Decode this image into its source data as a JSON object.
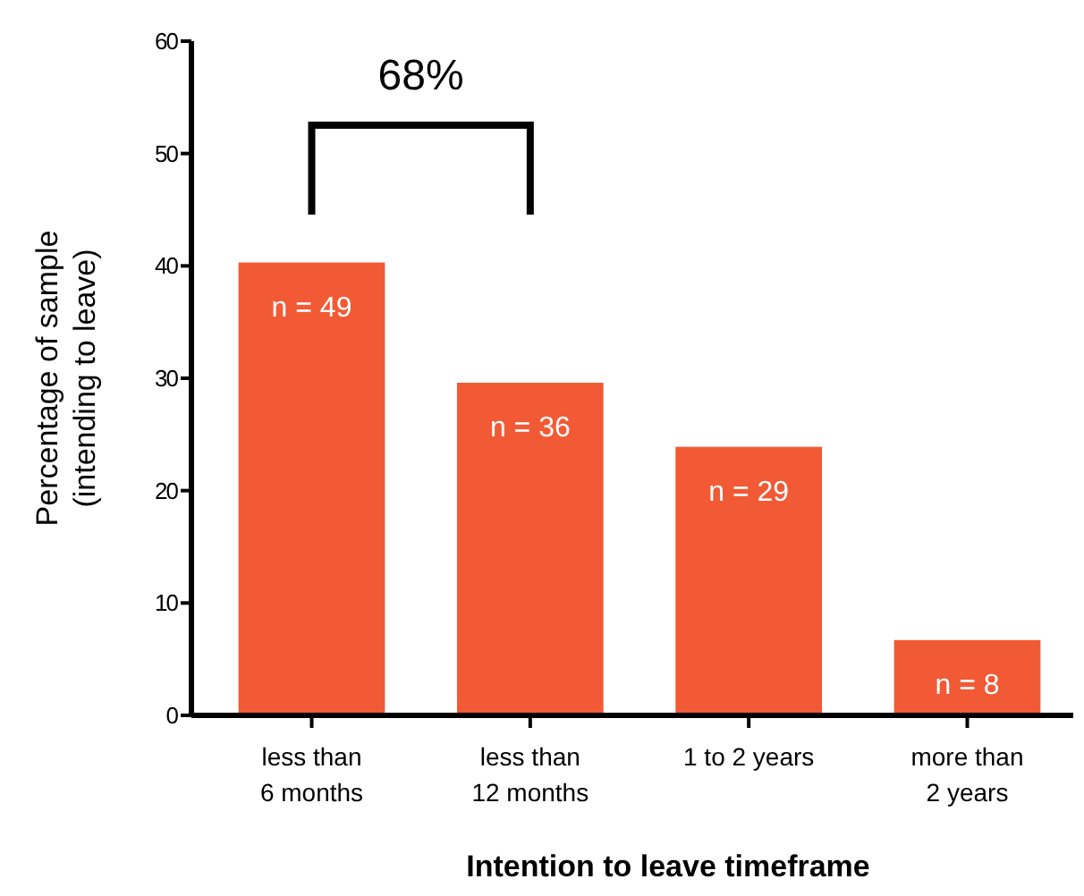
{
  "chart_data": {
    "type": "bar",
    "xlabel": "Intention to leave timeframe",
    "ylabel": "Percentage of sample\n(intending to leave)",
    "categories": [
      "less than\n6 months",
      "less than\n12 months",
      "1 to 2 years",
      "more than\n2 years"
    ],
    "values": [
      40.3,
      29.6,
      23.9,
      6.7
    ],
    "color": "#f15a35",
    "annotations": [
      "68%",
      {
        "text": "n = 49",
        "x": "less than\n6 months",
        "y": 40.3
      },
      {
        "text": "n = 36",
        "x": "less than\n12 months",
        "y": 29.6
      },
      {
        "text": "n = 29",
        "x": "1 to 2 years",
        "y": 23.9
      },
      {
        "text": "n = 8",
        "x": "more than\n2 years",
        "y": 6.7
      }
    ],
    "ylim": [
      0,
      60
    ],
    "yticks": [
      0,
      10,
      20,
      30,
      40,
      50,
      60
    ],
    "grid": false
  }
}
